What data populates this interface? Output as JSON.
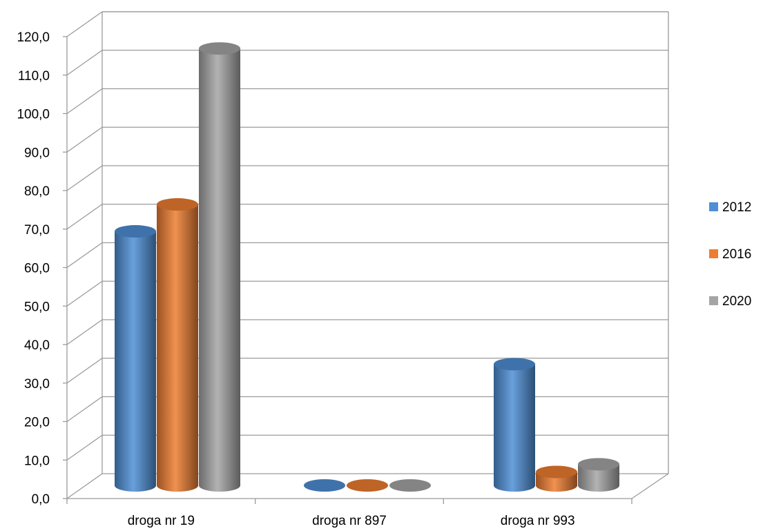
{
  "chart_data": {
    "type": "bar",
    "categories": [
      "droga nr 19",
      "droga nr 897",
      "droga nr 993"
    ],
    "series": [
      {
        "name": "2012",
        "values": [
          66.0,
          0.0,
          31.5
        ],
        "color": "#4f8fd6"
      },
      {
        "name": "2016",
        "values": [
          73.0,
          0.0,
          3.5
        ],
        "color": "#ed7d31"
      },
      {
        "name": "2020",
        "values": [
          113.5,
          0.0,
          5.5
        ],
        "color": "#a5a5a5"
      }
    ],
    "y_ticks": [
      "0,0",
      "10,0",
      "20,0",
      "30,0",
      "40,0",
      "50,0",
      "60,0",
      "70,0",
      "80,0",
      "90,0",
      "100,0",
      "110,0",
      "120,0"
    ],
    "ylim": [
      0,
      120
    ],
    "grid": true,
    "legend_position": "right",
    "style": "3d-cylinder"
  }
}
